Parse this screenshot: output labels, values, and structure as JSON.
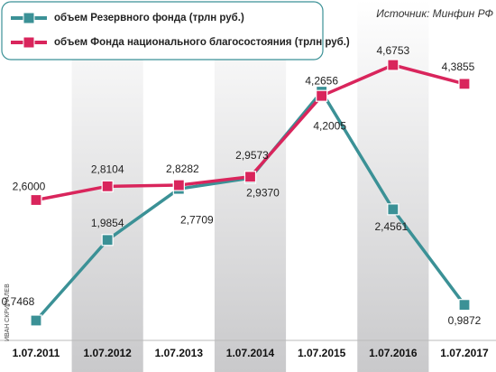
{
  "chart_data": {
    "type": "line",
    "source": "Источник: Минфин РФ",
    "credit": "ИВАН СКРИПАЛЕВ",
    "legend": "top-left",
    "categories": [
      "1.07.2011",
      "1.07.2012",
      "1.07.2013",
      "1.07.2014",
      "1.07.2015",
      "1.07.2016",
      "1.07.2017"
    ],
    "series": [
      {
        "name": "объем Резервного фонда (трлн руб.)",
        "color": "#3b9196",
        "values": [
          0.7468,
          1.9854,
          2.7709,
          2.937,
          4.2656,
          2.4561,
          0.9872
        ],
        "value_labels": [
          "0,7468",
          "1,9854",
          "2,7709",
          "2,9370",
          "4,2656",
          "2,4561",
          "0,9872"
        ]
      },
      {
        "name": "объем Фонда национального благосостояния (трлн руб.)",
        "color": "#d9255c",
        "values": [
          2.6,
          2.8104,
          2.8282,
          2.9573,
          4.2005,
          4.6753,
          4.3855
        ],
        "value_labels": [
          "2,6000",
          "2,8104",
          "2,8282",
          "2,9573",
          "4,2005",
          "4,6753",
          "4,3855"
        ]
      }
    ]
  }
}
